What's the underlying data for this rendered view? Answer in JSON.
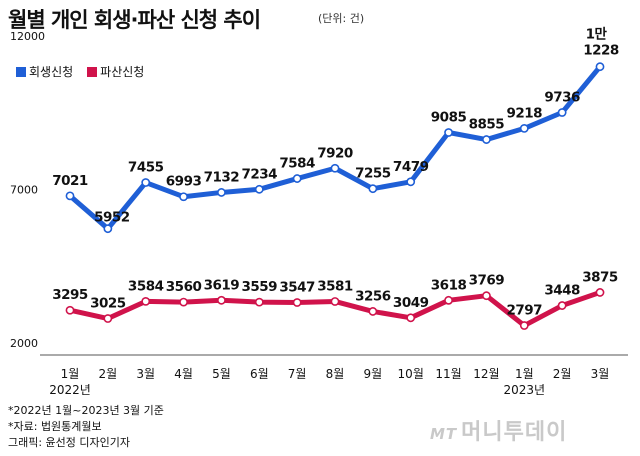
{
  "title": "월별 개인 회생·파산 신청 추이",
  "unit": "(단위: 건)",
  "legend": [
    {
      "name": "회생신청",
      "color": "#1f5fd6"
    },
    {
      "name": "파산신청",
      "color": "#d0134b"
    }
  ],
  "notes": [
    "*2022년 1월~2023년 3월 기준",
    "*자료: 법원통계월보",
    "그래픽: 윤선정 디자인기자"
  ],
  "watermark": {
    "mt": "MT",
    "text": "머니투데이"
  },
  "chart_data": {
    "type": "line",
    "categories": [
      "1월",
      "2월",
      "3월",
      "4월",
      "5월",
      "6월",
      "7월",
      "8월",
      "9월",
      "10월",
      "11월",
      "12월",
      "1월",
      "2월",
      "3월"
    ],
    "year_labels": [
      {
        "index": 0,
        "label": "2022년"
      },
      {
        "index": 12,
        "label": "2023년"
      }
    ],
    "yticks": [
      12000,
      7000,
      2000
    ],
    "ylim": [
      2000,
      12000
    ],
    "grid": false,
    "legend_position": "top-left",
    "series": [
      {
        "name": "회생신청",
        "color": "#1f5fd6",
        "values": [
          7021,
          5952,
          7455,
          6993,
          7132,
          7234,
          7584,
          7920,
          7255,
          7479,
          9085,
          8855,
          9218,
          9736,
          11228
        ],
        "labels": [
          "7021",
          "5952",
          "7455",
          "6993",
          "7132",
          "7234",
          "7584",
          "7920",
          "7255",
          "7479",
          "9085",
          "8855",
          "9218",
          "9736",
          "1228"
        ],
        "last_label_prefix": "1만"
      },
      {
        "name": "파산신청",
        "color": "#d0134b",
        "values": [
          3295,
          3025,
          3584,
          3560,
          3619,
          3559,
          3547,
          3581,
          3256,
          3049,
          3618,
          3769,
          2797,
          3448,
          3875
        ],
        "labels": [
          "3295",
          "3025",
          "3584",
          "3560",
          "3619",
          "3559",
          "3547",
          "3581",
          "3256",
          "3049",
          "3618",
          "3769",
          "2797",
          "3448",
          "3875"
        ]
      }
    ]
  }
}
